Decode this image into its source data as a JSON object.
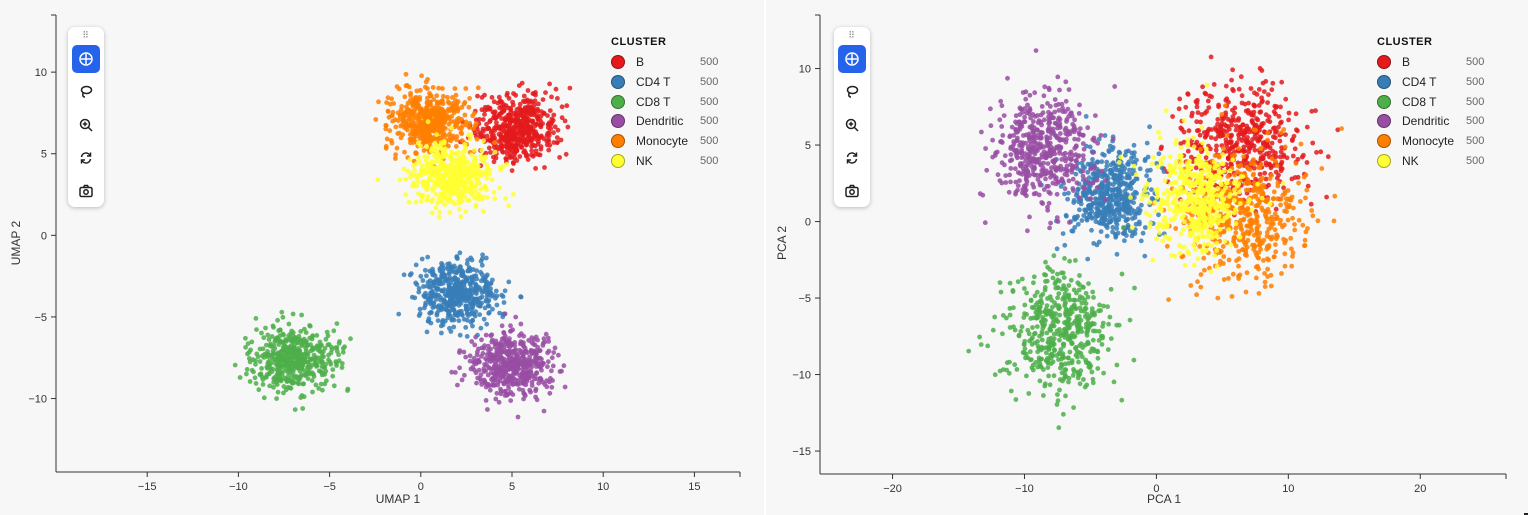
{
  "toolbar": {
    "buttons": [
      {
        "icon": "pan-icon",
        "active": true
      },
      {
        "icon": "lasso-icon",
        "active": false
      },
      {
        "icon": "zoom-in-icon",
        "active": false
      },
      {
        "icon": "reset-icon",
        "active": false
      },
      {
        "icon": "camera-icon",
        "active": false
      }
    ]
  },
  "legend": {
    "title": "CLUSTER",
    "items": [
      {
        "label": "B",
        "count": "500",
        "color": "#e41a1c"
      },
      {
        "label": "CD4 T",
        "count": "500",
        "color": "#377eb8"
      },
      {
        "label": "CD8 T",
        "count": "500",
        "color": "#4daf4a"
      },
      {
        "label": "Dendritic",
        "count": "500",
        "color": "#984ea3"
      },
      {
        "label": "Monocyte",
        "count": "500",
        "color": "#ff7f00"
      },
      {
        "label": "NK",
        "count": "500",
        "color": "#ffff33"
      }
    ]
  },
  "chart_data": [
    {
      "type": "scatter",
      "xlabel": "UMAP 1",
      "ylabel": "UMAP 2",
      "xlim": [
        -20,
        17.5
      ],
      "ylim": [
        -14.5,
        13.5
      ],
      "xticks": [
        -15,
        -10,
        -5,
        0,
        5,
        10,
        15
      ],
      "yticks": [
        -10,
        -5,
        0,
        5,
        10
      ],
      "grid": false,
      "legend_position": "top-right",
      "series": [
        {
          "name": "B",
          "count": 500,
          "center": [
            5.2,
            6.6
          ],
          "spread": [
            1.1,
            1.0
          ]
        },
        {
          "name": "CD4 T",
          "count": 500,
          "center": [
            2.0,
            -3.6
          ],
          "spread": [
            1.1,
            1.0
          ]
        },
        {
          "name": "CD8 T",
          "count": 500,
          "center": [
            -7.0,
            -7.6
          ],
          "spread": [
            1.1,
            1.0
          ]
        },
        {
          "name": "Dendritic",
          "count": 500,
          "center": [
            5.0,
            -8.0
          ],
          "spread": [
            1.1,
            1.0
          ]
        },
        {
          "name": "Monocyte",
          "count": 500,
          "center": [
            0.5,
            7.0
          ],
          "spread": [
            1.1,
            1.0
          ]
        },
        {
          "name": "NK",
          "count": 500,
          "center": [
            1.8,
            3.6
          ],
          "spread": [
            1.1,
            1.0
          ]
        }
      ]
    },
    {
      "type": "scatter",
      "xlabel": "PCA 1",
      "ylabel": "PCA 2",
      "xlim": [
        -25.5,
        26.5
      ],
      "ylim": [
        -16.5,
        13.5
      ],
      "xticks": [
        -20,
        -10,
        0,
        10,
        20
      ],
      "yticks": [
        -15,
        -10,
        -5,
        0,
        5,
        10
      ],
      "grid": false,
      "legend_position": "top-right",
      "series": [
        {
          "name": "B",
          "count": 500,
          "center": [
            6.5,
            5.0
          ],
          "spread": [
            2.3,
            1.9
          ]
        },
        {
          "name": "CD4 T",
          "count": 500,
          "center": [
            -3.5,
            1.8
          ],
          "spread": [
            1.6,
            1.5
          ]
        },
        {
          "name": "CD8 T",
          "count": 500,
          "center": [
            -7.5,
            -7.2
          ],
          "spread": [
            2.0,
            2.0
          ]
        },
        {
          "name": "Dendritic",
          "count": 500,
          "center": [
            -8.5,
            4.8
          ],
          "spread": [
            1.9,
            1.8
          ]
        },
        {
          "name": "Monocyte",
          "count": 500,
          "center": [
            6.5,
            0.5
          ],
          "spread": [
            2.3,
            2.0
          ]
        },
        {
          "name": "NK",
          "count": 500,
          "center": [
            3.0,
            1.5
          ],
          "spread": [
            1.7,
            1.8
          ]
        }
      ]
    }
  ]
}
